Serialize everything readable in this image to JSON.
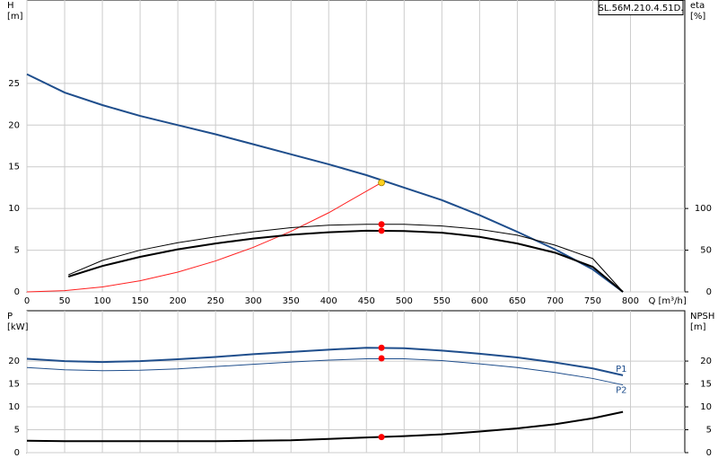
{
  "chart_data": [
    {
      "type": "line",
      "title": "SL.56M.210.4.51D.",
      "y_label": "H",
      "y_unit": "[m]",
      "y2_label": "eta",
      "y2_unit": "[%]",
      "x_label": "Q [m³/h]",
      "xlim": [
        0,
        872
      ],
      "xticks": [
        0,
        50,
        100,
        150,
        200,
        250,
        300,
        350,
        400,
        450,
        500,
        550,
        600,
        650,
        700,
        750,
        800
      ],
      "xtick_labels": true,
      "ylim": [
        0,
        35
      ],
      "yticks": [
        0,
        5,
        10,
        15,
        20,
        25
      ],
      "y2lim": [
        0,
        350
      ],
      "y2ticks": [
        0,
        50,
        100
      ],
      "grid": true,
      "series": [
        {
          "color": "#1f4e8c",
          "line_width": 2,
          "x": [
            0,
            50,
            100,
            150,
            200,
            250,
            300,
            350,
            400,
            450,
            500,
            550,
            600,
            650,
            700,
            750,
            790
          ],
          "values": [
            26.1,
            23.9,
            22.4,
            21.1,
            20.0,
            18.9,
            17.7,
            16.5,
            15.3,
            14.0,
            12.5,
            11.0,
            9.2,
            7.2,
            5.1,
            2.7,
            0
          ]
        },
        {
          "color": "#ff2020",
          "line_width": 1,
          "x": [
            0,
            50,
            100,
            150,
            200,
            250,
            300,
            350,
            400,
            470
          ],
          "values": [
            0,
            0.15,
            0.59,
            1.33,
            2.37,
            3.71,
            5.34,
            7.26,
            9.49,
            13.1
          ]
        },
        {
          "color": "#000000",
          "line_width": 1,
          "axis": "y2",
          "x": [
            55,
            100,
            150,
            200,
            250,
            300,
            350,
            400,
            450,
            500,
            550,
            600,
            650,
            700,
            750,
            790
          ],
          "values": [
            20.5,
            37.7,
            50,
            59,
            66,
            72,
            77,
            80,
            81,
            81,
            79,
            75,
            68,
            56,
            40,
            0
          ]
        },
        {
          "color": "#000000",
          "line_width": 2,
          "axis": "y2",
          "x": [
            55,
            100,
            150,
            200,
            250,
            300,
            350,
            400,
            450,
            500,
            550,
            600,
            650,
            700,
            750,
            790
          ],
          "values": [
            18.3,
            31,
            42,
            51,
            58,
            64,
            68.5,
            71.5,
            73.3,
            73,
            71,
            66,
            58,
            47,
            30,
            0
          ]
        }
      ],
      "points": [
        {
          "x": 470,
          "y": 13.1,
          "color": "#ffd21f"
        },
        {
          "x": 470,
          "y": 81,
          "axis": "y2",
          "color": "#ff0000"
        },
        {
          "x": 470,
          "y": 73.3,
          "axis": "y2",
          "color": "#ff0000"
        }
      ]
    },
    {
      "type": "line",
      "y_label": "P",
      "y_unit": "[kW]",
      "y2_label": "NPSH",
      "y2_unit": "[m]",
      "xlim": [
        0,
        872
      ],
      "xticks": [
        0,
        50,
        100,
        150,
        200,
        250,
        300,
        350,
        400,
        450,
        500,
        550,
        600,
        650,
        700,
        750,
        800
      ],
      "xtick_labels": false,
      "ylim": [
        0,
        31
      ],
      "yticks": [
        0,
        5,
        10,
        15,
        20
      ],
      "y2lim": [
        0,
        31
      ],
      "y2ticks": [
        0,
        5,
        10,
        15,
        20
      ],
      "grid": true,
      "series": [
        {
          "name": "P1",
          "color": "#1f4e8c",
          "line_width": 2,
          "x": [
            0,
            50,
            100,
            150,
            200,
            250,
            300,
            350,
            400,
            450,
            500,
            550,
            600,
            650,
            700,
            750,
            790
          ],
          "values": [
            20.5,
            20.0,
            19.8,
            20.0,
            20.4,
            20.9,
            21.5,
            22.0,
            22.5,
            22.9,
            22.8,
            22.3,
            21.6,
            20.8,
            19.7,
            18.4,
            16.9
          ]
        },
        {
          "name": "P2",
          "color": "#1f4e8c",
          "line_width": 1,
          "x": [
            0,
            50,
            100,
            150,
            200,
            250,
            300,
            350,
            400,
            450,
            500,
            550,
            600,
            650,
            700,
            750,
            790
          ],
          "values": [
            18.6,
            18.1,
            17.9,
            18.0,
            18.3,
            18.8,
            19.3,
            19.8,
            20.2,
            20.5,
            20.5,
            20.1,
            19.4,
            18.6,
            17.5,
            16.2,
            14.8
          ]
        },
        {
          "color": "#000000",
          "line_width": 2,
          "axis": "y2",
          "x": [
            0,
            50,
            100,
            150,
            200,
            250,
            300,
            350,
            400,
            450,
            500,
            550,
            600,
            650,
            700,
            750,
            790
          ],
          "values": [
            2.6,
            2.5,
            2.5,
            2.5,
            2.5,
            2.5,
            2.6,
            2.7,
            3.0,
            3.3,
            3.6,
            4.0,
            4.6,
            5.3,
            6.2,
            7.5,
            8.9
          ]
        }
      ],
      "points": [
        {
          "x": 470,
          "y": 22.9,
          "color": "#ff0000"
        },
        {
          "x": 470,
          "y": 20.6,
          "color": "#ff0000"
        },
        {
          "x": 470,
          "y": 3.4,
          "axis": "y2",
          "color": "#ff0000"
        }
      ]
    }
  ]
}
